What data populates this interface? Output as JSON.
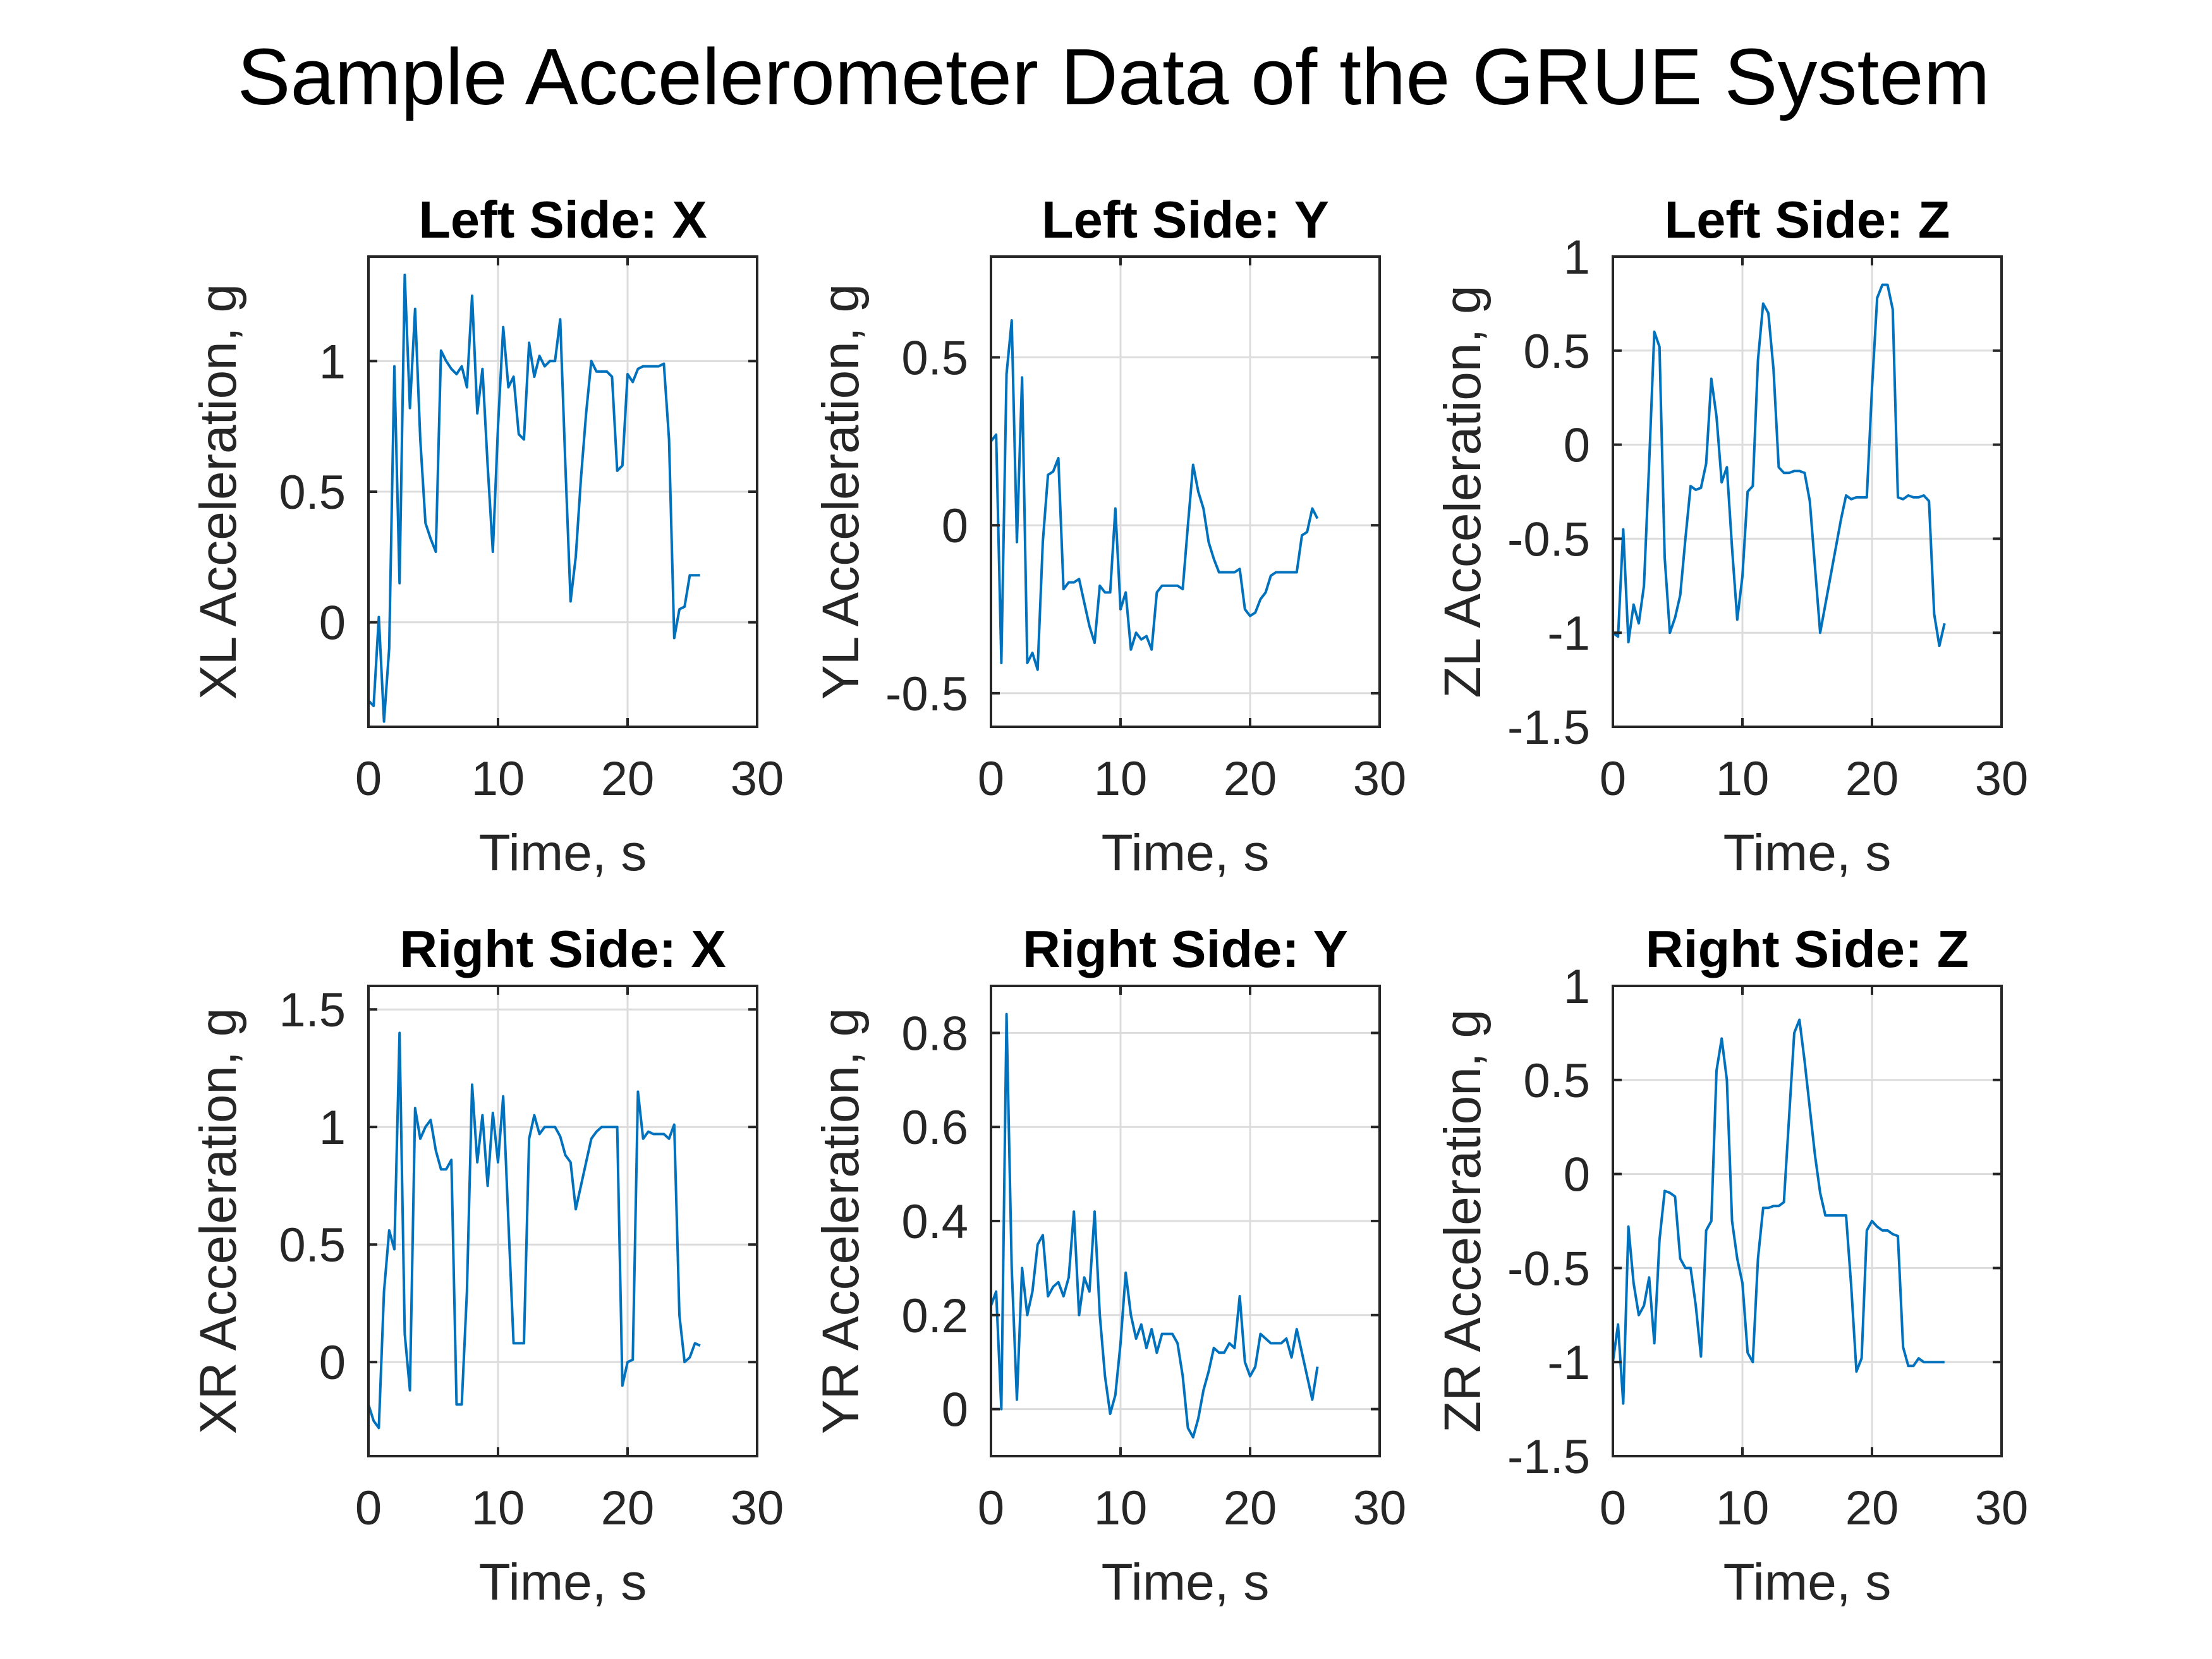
{
  "figure": {
    "title": "Sample Accelerometer Data of the GRUE System"
  },
  "colors": {
    "line": "#0072BD",
    "axis": "#262626",
    "grid": "#dcdcdc"
  },
  "chart_data": [
    {
      "type": "line",
      "title": "Left Side: X",
      "xlabel": "Time, s",
      "ylabel": "XL Acceleration, g",
      "xlim": [
        0,
        30
      ],
      "ylim": [
        -0.4,
        1.4
      ],
      "xticks": [
        0,
        10,
        20,
        30
      ],
      "xtick_labels": [
        "0",
        "10",
        "20",
        "30"
      ],
      "yticks": [
        0,
        0.5,
        1
      ],
      "ytick_labels": [
        "0",
        "0.5",
        "1"
      ],
      "grid": true,
      "series": [
        {
          "x": [
            0,
            0.4,
            0.8,
            1.2,
            1.6,
            2.0,
            2.4,
            2.8,
            3.2,
            3.6,
            4.0,
            4.4,
            4.8,
            5.2,
            5.6,
            6.0,
            6.4,
            6.8,
            7.2,
            7.6,
            8.0,
            8.4,
            8.8,
            9.2,
            9.6,
            10.0,
            10.4,
            10.8,
            11.2,
            11.6,
            12.0,
            12.4,
            12.8,
            13.2,
            13.6,
            14.0,
            14.4,
            14.8,
            15.2,
            15.6,
            16.0,
            16.4,
            16.8,
            17.2,
            17.6,
            18.0,
            18.4,
            18.8,
            19.2,
            19.6,
            20.0,
            20.4,
            20.8,
            21.2,
            21.6,
            22.0,
            22.4,
            22.8,
            23.2,
            23.6,
            24.0,
            24.4,
            24.8,
            25.2,
            25.6
          ],
          "y": [
            -0.3,
            -0.32,
            0.02,
            -0.38,
            -0.1,
            0.98,
            0.15,
            1.33,
            0.82,
            1.2,
            0.7,
            0.38,
            0.32,
            0.27,
            1.04,
            1.0,
            0.97,
            0.95,
            0.98,
            0.9,
            1.25,
            0.8,
            0.97,
            0.6,
            0.27,
            0.75,
            1.13,
            0.9,
            0.94,
            0.72,
            0.7,
            1.07,
            0.94,
            1.02,
            0.98,
            1.0,
            1.0,
            1.16,
            0.6,
            0.08,
            0.25,
            0.55,
            0.8,
            1.0,
            0.96,
            0.96,
            0.96,
            0.94,
            0.58,
            0.6,
            0.95,
            0.92,
            0.97,
            0.98,
            0.98,
            0.98,
            0.98,
            0.99,
            0.7,
            -0.06,
            0.05,
            0.06,
            0.18,
            0.18,
            0.18
          ]
        }
      ]
    },
    {
      "type": "line",
      "title": "Left Side: Y",
      "xlabel": "Time, s",
      "ylabel": "YL Acceleration, g",
      "xlim": [
        0,
        30
      ],
      "ylim": [
        -0.6,
        0.8
      ],
      "xticks": [
        0,
        10,
        20,
        30
      ],
      "xtick_labels": [
        "0",
        "10",
        "20",
        "30"
      ],
      "yticks": [
        -0.5,
        0,
        0.5
      ],
      "ytick_labels": [
        "-0.5",
        "0",
        "0.5"
      ],
      "grid": true,
      "series": [
        {
          "x": [
            0,
            0.4,
            0.8,
            1.2,
            1.6,
            2.0,
            2.4,
            2.8,
            3.2,
            3.6,
            4.0,
            4.4,
            4.8,
            5.2,
            5.6,
            6.0,
            6.4,
            6.8,
            7.2,
            7.6,
            8.0,
            8.4,
            8.8,
            9.2,
            9.6,
            10.0,
            10.4,
            10.8,
            11.2,
            11.6,
            12.0,
            12.4,
            12.8,
            13.2,
            13.6,
            14.0,
            14.4,
            14.8,
            15.2,
            15.6,
            16.0,
            16.4,
            16.8,
            17.2,
            17.6,
            18.0,
            18.4,
            18.8,
            19.2,
            19.6,
            20.0,
            20.4,
            20.8,
            21.2,
            21.6,
            22.0,
            22.4,
            22.8,
            23.2,
            23.6,
            24.0,
            24.4,
            24.8,
            25.2
          ],
          "y": [
            0.25,
            0.27,
            -0.41,
            0.45,
            0.61,
            -0.05,
            0.44,
            -0.41,
            -0.38,
            -0.43,
            -0.05,
            0.15,
            0.16,
            0.2,
            -0.19,
            -0.17,
            -0.17,
            -0.16,
            -0.23,
            -0.3,
            -0.35,
            -0.18,
            -0.2,
            -0.2,
            0.05,
            -0.25,
            -0.2,
            -0.37,
            -0.32,
            -0.34,
            -0.33,
            -0.37,
            -0.2,
            -0.18,
            -0.18,
            -0.18,
            -0.18,
            -0.19,
            0.0,
            0.18,
            0.1,
            0.05,
            -0.05,
            -0.1,
            -0.14,
            -0.14,
            -0.14,
            -0.14,
            -0.13,
            -0.25,
            -0.27,
            -0.26,
            -0.22,
            -0.2,
            -0.15,
            -0.14,
            -0.14,
            -0.14,
            -0.14,
            -0.14,
            -0.03,
            -0.02,
            0.05,
            0.02
          ]
        }
      ]
    },
    {
      "type": "line",
      "title": "Left Side: Z",
      "xlabel": "Time, s",
      "ylabel": "ZL Acceleration, g",
      "xlim": [
        0,
        30
      ],
      "ylim": [
        -1.5,
        1
      ],
      "xticks": [
        0,
        10,
        20,
        30
      ],
      "xtick_labels": [
        "0",
        "10",
        "20",
        "30"
      ],
      "yticks": [
        -1.5,
        -1,
        -0.5,
        0,
        0.5,
        1
      ],
      "ytick_labels": [
        "-1.5",
        "-1",
        "-0.5",
        "0",
        "0.5",
        "1"
      ],
      "grid": true,
      "series": [
        {
          "x": [
            0,
            0.4,
            0.8,
            1.2,
            1.6,
            2.0,
            2.4,
            2.8,
            3.2,
            3.6,
            4.0,
            4.4,
            4.8,
            5.2,
            5.6,
            6.0,
            6.4,
            6.8,
            7.2,
            7.6,
            8.0,
            8.4,
            8.8,
            9.2,
            9.6,
            10.0,
            10.4,
            10.8,
            11.2,
            11.6,
            12.0,
            12.4,
            12.8,
            13.2,
            13.6,
            14.0,
            14.4,
            14.8,
            15.2,
            15.6,
            16.0,
            16.4,
            16.8,
            17.2,
            17.6,
            18.0,
            18.4,
            18.8,
            19.2,
            19.6,
            20.0,
            20.4,
            20.8,
            21.2,
            21.6,
            22.0,
            22.4,
            22.8,
            23.2,
            23.6,
            24.0,
            24.4,
            24.8,
            25.2,
            25.6
          ],
          "y": [
            -1.0,
            -1.02,
            -0.45,
            -1.05,
            -0.85,
            -0.95,
            -0.75,
            -0.1,
            0.6,
            0.52,
            -0.6,
            -1.0,
            -0.92,
            -0.8,
            -0.5,
            -0.22,
            -0.24,
            -0.23,
            -0.1,
            0.35,
            0.15,
            -0.2,
            -0.12,
            -0.55,
            -0.93,
            -0.7,
            -0.25,
            -0.22,
            0.45,
            0.75,
            0.7,
            0.4,
            -0.12,
            -0.15,
            -0.15,
            -0.14,
            -0.14,
            -0.15,
            -0.3,
            -0.65,
            -1.0,
            -0.85,
            -0.7,
            -0.55,
            -0.4,
            -0.27,
            -0.29,
            -0.28,
            -0.28,
            -0.28,
            0.3,
            0.78,
            0.85,
            0.85,
            0.72,
            -0.28,
            -0.29,
            -0.27,
            -0.28,
            -0.28,
            -0.27,
            -0.3,
            -0.9,
            -1.07,
            -0.95
          ]
        }
      ]
    },
    {
      "type": "line",
      "title": "Right Side: X",
      "xlabel": "Time, s",
      "ylabel": "XR Acceleration, g",
      "xlim": [
        0,
        30
      ],
      "ylim": [
        -0.4,
        1.6
      ],
      "xticks": [
        0,
        10,
        20,
        30
      ],
      "xtick_labels": [
        "0",
        "10",
        "20",
        "30"
      ],
      "yticks": [
        0,
        0.5,
        1,
        1.5
      ],
      "ytick_labels": [
        "0",
        "0.5",
        "1",
        "1.5"
      ],
      "grid": true,
      "series": [
        {
          "x": [
            0,
            0.4,
            0.8,
            1.2,
            1.6,
            2.0,
            2.4,
            2.8,
            3.2,
            3.6,
            4.0,
            4.4,
            4.8,
            5.2,
            5.6,
            6.0,
            6.4,
            6.8,
            7.2,
            7.6,
            8.0,
            8.4,
            8.8,
            9.2,
            9.6,
            10.0,
            10.4,
            10.8,
            11.2,
            11.6,
            12.0,
            12.4,
            12.8,
            13.2,
            13.6,
            14.0,
            14.4,
            14.8,
            15.2,
            15.6,
            16.0,
            16.4,
            16.8,
            17.2,
            17.6,
            18.0,
            18.4,
            18.8,
            19.2,
            19.6,
            20.0,
            20.4,
            20.8,
            21.2,
            21.6,
            22.0,
            22.4,
            22.8,
            23.2,
            23.6,
            24.0,
            24.4,
            24.8,
            25.2,
            25.6
          ],
          "y": [
            -0.18,
            -0.25,
            -0.28,
            0.3,
            0.56,
            0.48,
            1.4,
            0.12,
            -0.12,
            1.08,
            0.95,
            1.0,
            1.03,
            0.9,
            0.82,
            0.82,
            0.86,
            -0.18,
            -0.18,
            0.3,
            1.18,
            0.85,
            1.05,
            0.75,
            1.06,
            0.85,
            1.13,
            0.6,
            0.08,
            0.08,
            0.08,
            0.95,
            1.05,
            0.97,
            1.0,
            1.0,
            1.0,
            0.96,
            0.88,
            0.85,
            0.65,
            0.75,
            0.85,
            0.95,
            0.98,
            1.0,
            1.0,
            1.0,
            1.0,
            -0.1,
            0.0,
            0.01,
            1.15,
            0.95,
            0.98,
            0.97,
            0.97,
            0.97,
            0.95,
            1.01,
            0.2,
            0.0,
            0.02,
            0.08,
            0.07
          ]
        }
      ]
    },
    {
      "type": "line",
      "title": "Right Side: Y",
      "xlabel": "Time, s",
      "ylabel": "YR Acceleration, g",
      "xlim": [
        0,
        30
      ],
      "ylim": [
        -0.1,
        0.9
      ],
      "xticks": [
        0,
        10,
        20,
        30
      ],
      "xtick_labels": [
        "0",
        "10",
        "20",
        "30"
      ],
      "yticks": [
        0,
        0.2,
        0.4,
        0.6,
        0.8
      ],
      "ytick_labels": [
        "0",
        "0.2",
        "0.4",
        "0.6",
        "0.8"
      ],
      "grid": true,
      "series": [
        {
          "x": [
            0,
            0.4,
            0.8,
            1.2,
            1.6,
            2.0,
            2.4,
            2.8,
            3.2,
            3.6,
            4.0,
            4.4,
            4.8,
            5.2,
            5.6,
            6.0,
            6.4,
            6.8,
            7.2,
            7.6,
            8.0,
            8.4,
            8.8,
            9.2,
            9.6,
            10.0,
            10.4,
            10.8,
            11.2,
            11.6,
            12.0,
            12.4,
            12.8,
            13.2,
            13.6,
            14.0,
            14.4,
            14.8,
            15.2,
            15.6,
            16.0,
            16.4,
            16.8,
            17.2,
            17.6,
            18.0,
            18.4,
            18.8,
            19.2,
            19.6,
            20.0,
            20.4,
            20.8,
            21.2,
            21.6,
            22.0,
            22.4,
            22.8,
            23.2,
            23.6,
            24.0,
            24.4,
            24.8,
            25.2
          ],
          "y": [
            0.22,
            0.25,
            0.0,
            0.84,
            0.3,
            0.02,
            0.3,
            0.2,
            0.25,
            0.35,
            0.37,
            0.24,
            0.26,
            0.27,
            0.24,
            0.28,
            0.42,
            0.2,
            0.28,
            0.25,
            0.42,
            0.2,
            0.07,
            -0.01,
            0.03,
            0.14,
            0.29,
            0.2,
            0.15,
            0.18,
            0.13,
            0.17,
            0.12,
            0.16,
            0.16,
            0.16,
            0.14,
            0.07,
            -0.04,
            -0.06,
            -0.02,
            0.04,
            0.08,
            0.13,
            0.12,
            0.12,
            0.14,
            0.13,
            0.24,
            0.1,
            0.07,
            0.09,
            0.16,
            0.15,
            0.14,
            0.14,
            0.14,
            0.15,
            0.11,
            0.17,
            0.12,
            0.07,
            0.02,
            0.09
          ]
        }
      ]
    },
    {
      "type": "line",
      "title": "Right Side: Z",
      "xlabel": "Time, s",
      "ylabel": "ZR Acceleration, g",
      "xlim": [
        0,
        30
      ],
      "ylim": [
        -1.5,
        1
      ],
      "xticks": [
        0,
        10,
        20,
        30
      ],
      "xtick_labels": [
        "0",
        "10",
        "20",
        "30"
      ],
      "yticks": [
        -1.5,
        -1,
        -0.5,
        0,
        0.5,
        1
      ],
      "ytick_labels": [
        "-1.5",
        "-1",
        "-0.5",
        "0",
        "0.5",
        "1"
      ],
      "grid": true,
      "series": [
        {
          "x": [
            0,
            0.4,
            0.8,
            1.2,
            1.6,
            2.0,
            2.4,
            2.8,
            3.2,
            3.6,
            4.0,
            4.4,
            4.8,
            5.2,
            5.6,
            6.0,
            6.4,
            6.8,
            7.2,
            7.6,
            8.0,
            8.4,
            8.8,
            9.2,
            9.6,
            10.0,
            10.4,
            10.8,
            11.2,
            11.6,
            12.0,
            12.4,
            12.8,
            13.2,
            13.6,
            14.0,
            14.4,
            14.8,
            15.2,
            15.6,
            16.0,
            16.4,
            16.8,
            17.2,
            17.6,
            18.0,
            18.4,
            18.8,
            19.2,
            19.6,
            20.0,
            20.4,
            20.8,
            21.2,
            21.6,
            22.0,
            22.4,
            22.8,
            23.2,
            23.6,
            24.0,
            24.4,
            24.8,
            25.2,
            25.6
          ],
          "y": [
            -1.0,
            -0.8,
            -1.22,
            -0.28,
            -0.58,
            -0.75,
            -0.7,
            -0.55,
            -0.9,
            -0.35,
            -0.09,
            -0.1,
            -0.12,
            -0.45,
            -0.5,
            -0.5,
            -0.7,
            -0.97,
            -0.3,
            -0.25,
            0.55,
            0.72,
            0.5,
            -0.25,
            -0.45,
            -0.58,
            -0.95,
            -1.0,
            -0.45,
            -0.18,
            -0.18,
            -0.17,
            -0.17,
            -0.15,
            0.3,
            0.75,
            0.82,
            0.6,
            0.35,
            0.1,
            -0.1,
            -0.22,
            -0.22,
            -0.22,
            -0.22,
            -0.22,
            -0.6,
            -1.05,
            -0.98,
            -0.3,
            -0.25,
            -0.28,
            -0.3,
            -0.3,
            -0.32,
            -0.33,
            -0.92,
            -1.02,
            -1.02,
            -0.98,
            -1.0,
            -1.0,
            -1.0,
            -1.0,
            -1.0
          ]
        }
      ]
    }
  ]
}
